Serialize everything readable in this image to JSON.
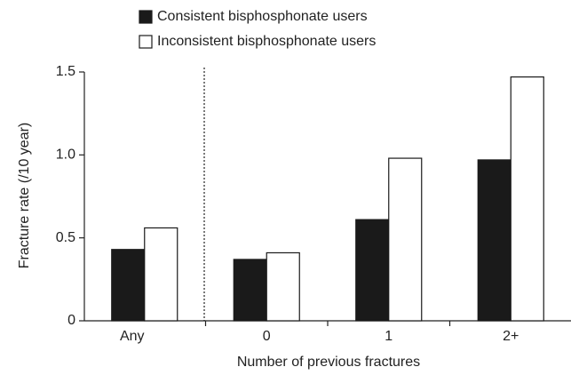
{
  "chart_data": {
    "type": "bar",
    "x_label": "Number of previous fractures",
    "y_label": "Fracture rate (/10 year)",
    "categories": [
      "Any",
      "0",
      "1",
      "2+"
    ],
    "series": [
      {
        "name": "Consistent bisphosphonate users",
        "color": "#1a1a1a",
        "values": [
          0.43,
          0.37,
          0.61,
          0.97
        ]
      },
      {
        "name": "Inconsistent bisphosphonate users",
        "color": "#ffffff",
        "values": [
          0.56,
          0.41,
          0.98,
          1.47
        ]
      }
    ],
    "ylim": [
      0,
      1.5
    ],
    "yticks": [
      0,
      0.5,
      {
        "value": 1,
        "label": "1.0"
      },
      1.5
    ],
    "grid": false
  }
}
